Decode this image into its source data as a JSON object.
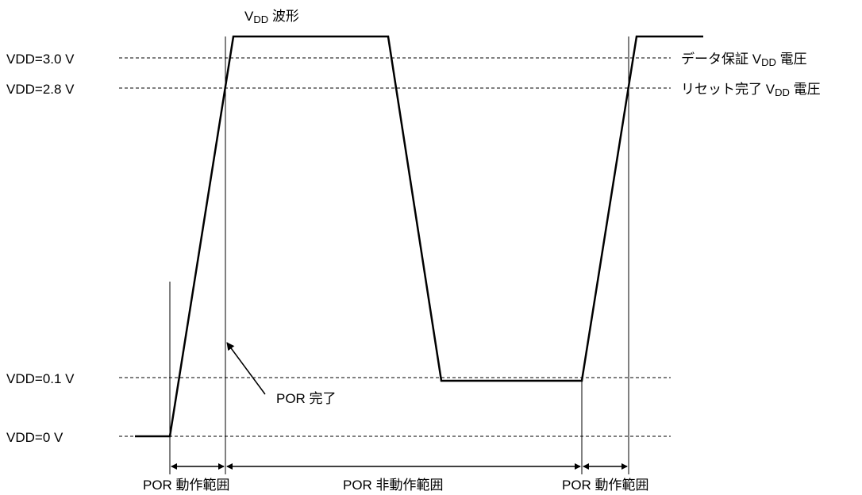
{
  "waveform_title": {
    "v": "V",
    "sub": "DD",
    "rest": " 波形"
  },
  "levels": {
    "v30": "VDD=3.0 V",
    "v28": "VDD=2.8 V",
    "v01": "VDD=0.1 V",
    "v0": "VDD=0 V"
  },
  "right_labels": {
    "data_guarantee": {
      "pre": "データ保証 V",
      "sub": "DD",
      "post": " 電圧"
    },
    "reset_complete": {
      "pre": "リセット完了 V",
      "sub": "DD",
      "post": " 電圧"
    }
  },
  "annotation": "POR 完了",
  "ranges": {
    "first": "POR 動作範囲",
    "middle": "POR 非動作範囲",
    "last": "POR 動作範囲"
  }
}
